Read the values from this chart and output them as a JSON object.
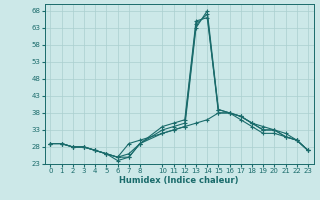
{
  "xlabel": "Humidex (Indice chaleur)",
  "bg_color": "#cce8e8",
  "grid_color": "#aacfcf",
  "line_color": "#1a6b6b",
  "xlim": [
    -0.5,
    23.5
  ],
  "ylim": [
    23,
    70
  ],
  "yticks": [
    23,
    28,
    33,
    38,
    43,
    48,
    53,
    58,
    63,
    68
  ],
  "xticks": [
    0,
    1,
    2,
    3,
    4,
    5,
    6,
    7,
    8,
    10,
    11,
    12,
    13,
    14,
    15,
    16,
    17,
    18,
    19,
    20,
    21,
    22,
    23
  ],
  "lines": [
    [
      0,
      29,
      1,
      29,
      2,
      28,
      3,
      28,
      4,
      27,
      5,
      26,
      6,
      25,
      7,
      25,
      8,
      29,
      10,
      34,
      11,
      35,
      12,
      36,
      13,
      65,
      14,
      66,
      15,
      39,
      16,
      38,
      17,
      36,
      18,
      34,
      19,
      32,
      20,
      32,
      21,
      31,
      22,
      30,
      23,
      27
    ],
    [
      0,
      29,
      1,
      29,
      2,
      28,
      3,
      28,
      4,
      27,
      5,
      26,
      6,
      25,
      7,
      26,
      8,
      29,
      10,
      33,
      11,
      34,
      12,
      35,
      13,
      64,
      14,
      67,
      15,
      38,
      16,
      38,
      17,
      37,
      18,
      35,
      19,
      33,
      20,
      33,
      21,
      31,
      22,
      30,
      23,
      27
    ],
    [
      0,
      29,
      1,
      29,
      2,
      28,
      3,
      28,
      4,
      27,
      5,
      26,
      6,
      24,
      7,
      25,
      8,
      29,
      10,
      32,
      11,
      33,
      12,
      34,
      13,
      63,
      14,
      68,
      15,
      39,
      16,
      38,
      17,
      37,
      18,
      35,
      19,
      33,
      20,
      33,
      21,
      31,
      22,
      30,
      23,
      27
    ],
    [
      0,
      29,
      1,
      29,
      2,
      28,
      3,
      28,
      4,
      27,
      5,
      26,
      6,
      25,
      7,
      29,
      8,
      30,
      10,
      32,
      11,
      33,
      12,
      34,
      13,
      35,
      14,
      36,
      15,
      38,
      16,
      38,
      17,
      37,
      18,
      35,
      19,
      34,
      20,
      33,
      21,
      32,
      22,
      30,
      23,
      27
    ]
  ]
}
